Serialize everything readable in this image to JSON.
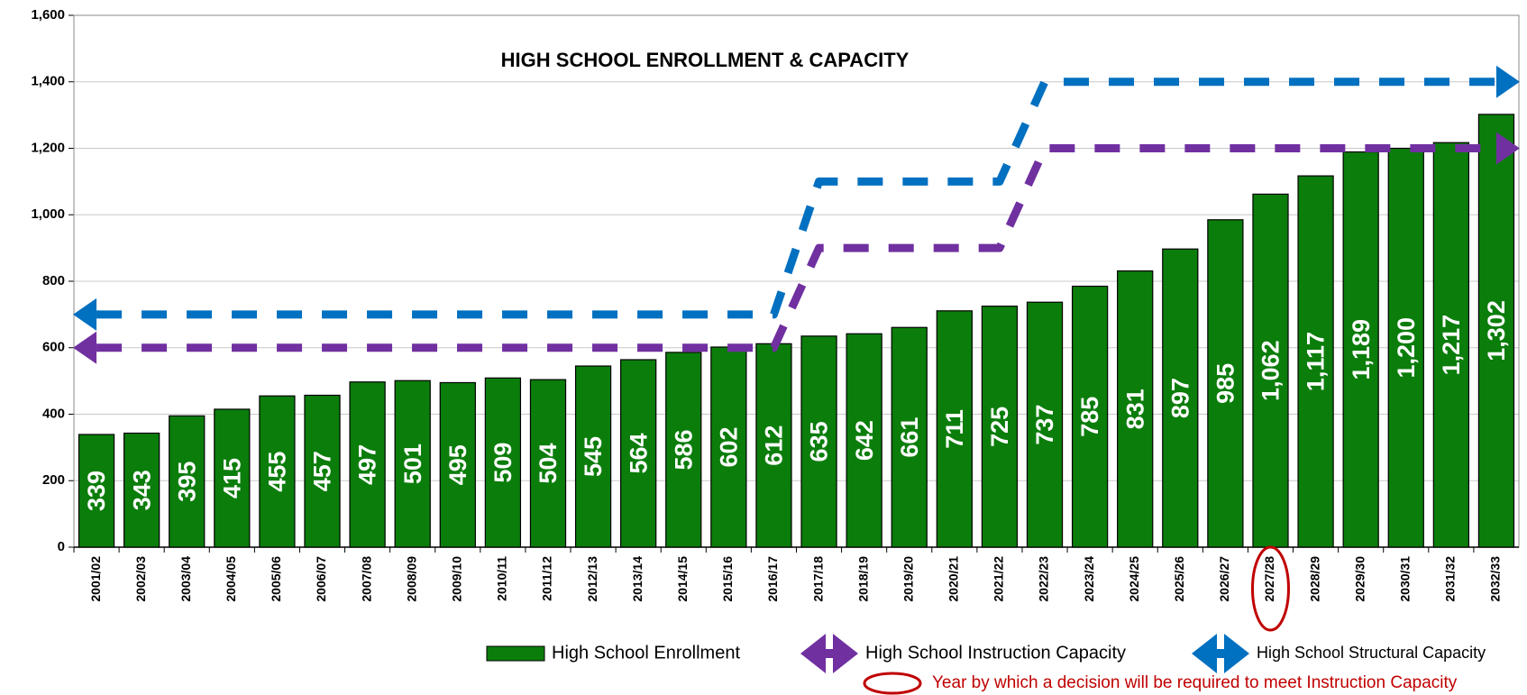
{
  "chart_data": {
    "type": "bar",
    "title": "HIGH SCHOOL ENROLLMENT & CAPACITY",
    "categories": [
      "2001/02",
      "2002/03",
      "2003/04",
      "2004/05",
      "2005/06",
      "2006/07",
      "2007/08",
      "2008/09",
      "2009/10",
      "2010/11",
      "2011/12",
      "2012/13",
      "2013/14",
      "2014/15",
      "2015/16",
      "2016/17",
      "2017/18",
      "2018/19",
      "2019/20",
      "2020/21",
      "2021/22",
      "2022/23",
      "2023/24",
      "2024/25",
      "2025/26",
      "2026/27",
      "2027/28",
      "2028/29",
      "2029/30",
      "2030/31",
      "2031/32",
      "2032/33"
    ],
    "series": [
      {
        "name": "High School Enrollment",
        "type": "bar",
        "color": "#0b7d0b",
        "values": [
          339,
          343,
          395,
          415,
          455,
          457,
          497,
          501,
          495,
          509,
          504,
          545,
          564,
          586,
          602,
          612,
          635,
          642,
          661,
          711,
          725,
          737,
          785,
          831,
          897,
          985,
          1062,
          1117,
          1189,
          1200,
          1217,
          1302
        ],
        "value_labels": [
          "339",
          "343",
          "395",
          "415",
          "455",
          "457",
          "497",
          "501",
          "495",
          "509",
          "504",
          "545",
          "564",
          "586",
          "602",
          "612",
          "635",
          "642",
          "661",
          "711",
          "725",
          "737",
          "785",
          "831",
          "897",
          "985",
          "1,062",
          "1,117",
          "1,189",
          "1,200",
          "1,217",
          "1,302"
        ]
      },
      {
        "name": "High School Instruction Capacity",
        "type": "line",
        "color": "#7030a0",
        "values": [
          600,
          600,
          600,
          600,
          600,
          600,
          600,
          600,
          600,
          600,
          600,
          600,
          600,
          600,
          600,
          600,
          900,
          900,
          900,
          900,
          900,
          1200,
          1200,
          1200,
          1200,
          1200,
          1200,
          1200,
          1200,
          1200,
          1200,
          1200
        ]
      },
      {
        "name": "High School Structural Capacity",
        "type": "line",
        "color": "#0070c0",
        "values": [
          700,
          700,
          700,
          700,
          700,
          700,
          700,
          700,
          700,
          700,
          700,
          700,
          700,
          700,
          700,
          700,
          1100,
          1100,
          1100,
          1100,
          1100,
          1400,
          1400,
          1400,
          1400,
          1400,
          1400,
          1400,
          1400,
          1400,
          1400,
          1400
        ]
      }
    ],
    "annotation": {
      "text": "Year by which a decision will be required to meet Instruction Capacity",
      "category_index": 26,
      "color": "#c00000"
    },
    "ylim": [
      0,
      1600
    ],
    "yticks": [
      0,
      200,
      400,
      600,
      800,
      {
        "value": 1000,
        "label": "1,000"
      },
      {
        "value": 1200,
        "label": "1,200"
      },
      {
        "value": 1400,
        "label": "1,400"
      },
      {
        "value": 1600,
        "label": "1,600"
      }
    ],
    "grid": true
  }
}
